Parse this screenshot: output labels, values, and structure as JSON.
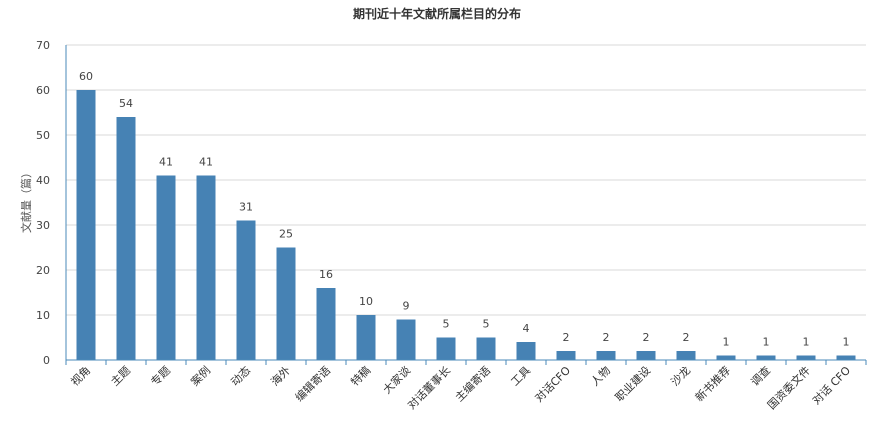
{
  "chart_data": {
    "type": "bar",
    "title": "期刊近十年文献所属栏目的分布",
    "xlabel": "",
    "ylabel": "文献量（篇）",
    "ylim": [
      0,
      70
    ],
    "yticks": [
      0,
      10,
      20,
      30,
      40,
      50,
      60,
      70
    ],
    "grid": true,
    "bar_color": "#4682b4",
    "categories": [
      "视角",
      "主题",
      "专题",
      "案例",
      "动态",
      "海外",
      "编辑寄语",
      "特稿",
      "大家谈",
      "对话董事长",
      "主编寄语",
      "工具",
      "对话CFO",
      "人物",
      "职业建设",
      "沙龙",
      "新书推荐",
      "调查",
      "国资委文件",
      "对话 CFO"
    ],
    "values": [
      60,
      54,
      41,
      41,
      31,
      25,
      16,
      10,
      9,
      5,
      5,
      4,
      2,
      2,
      2,
      2,
      1,
      1,
      1,
      1
    ]
  }
}
